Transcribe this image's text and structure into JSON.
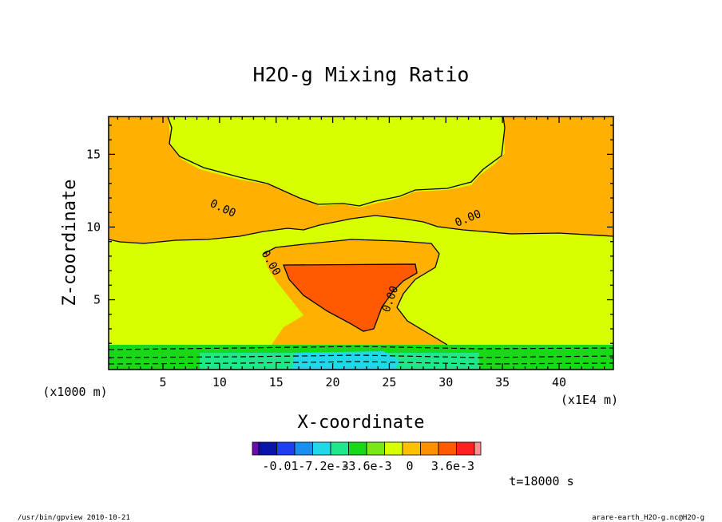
{
  "chart_data": {
    "type": "heatmap",
    "title": "H2O-g Mixing Ratio",
    "xlabel": "X-coordinate",
    "ylabel": "Z-coordinate",
    "x_unit_label": "(x1E4 m)",
    "y_unit_label": "(x1000 m)",
    "xlim": [
      0.2,
      44.8
    ],
    "ylim": [
      0.2,
      17.6
    ],
    "x_ticks": [
      "5",
      "10",
      "15",
      "20",
      "25",
      "30",
      "35",
      "40"
    ],
    "y_ticks": [
      "5",
      "10",
      "15"
    ],
    "contour_labels": [
      "0.00",
      "0.00",
      "0.00",
      "0.00"
    ],
    "colorbar": {
      "tick_labels": [
        "-0.01",
        "-7.2e-3",
        "-3.6e-3",
        "0",
        "3.6e-3"
      ],
      "tick_values": [
        -0.0108,
        -0.0072,
        -0.0036,
        0,
        0.0036
      ],
      "colors": [
        "#6a0dad",
        "#0a12a8",
        "#1f3ff0",
        "#1a8ff0",
        "#22d8e8",
        "#20e88a",
        "#18d818",
        "#78e818",
        "#d8ff00",
        "#ffc000",
        "#ff9000",
        "#ff5a00",
        "#ff2020",
        "#ff9090"
      ]
    },
    "fill_colors": {
      "upper": "#ffb000",
      "middle": "#d8ff00",
      "core": "#ff5a00",
      "low": "#18d818",
      "low2": "#20e88a",
      "lowest": "#22d8e8"
    }
  },
  "annotations": {
    "time": "t=18000 s",
    "footer_left": "/usr/bin/gpview   2010-10-21",
    "footer_right": "arare-earth_H2O-g.nc@H2O-g"
  }
}
